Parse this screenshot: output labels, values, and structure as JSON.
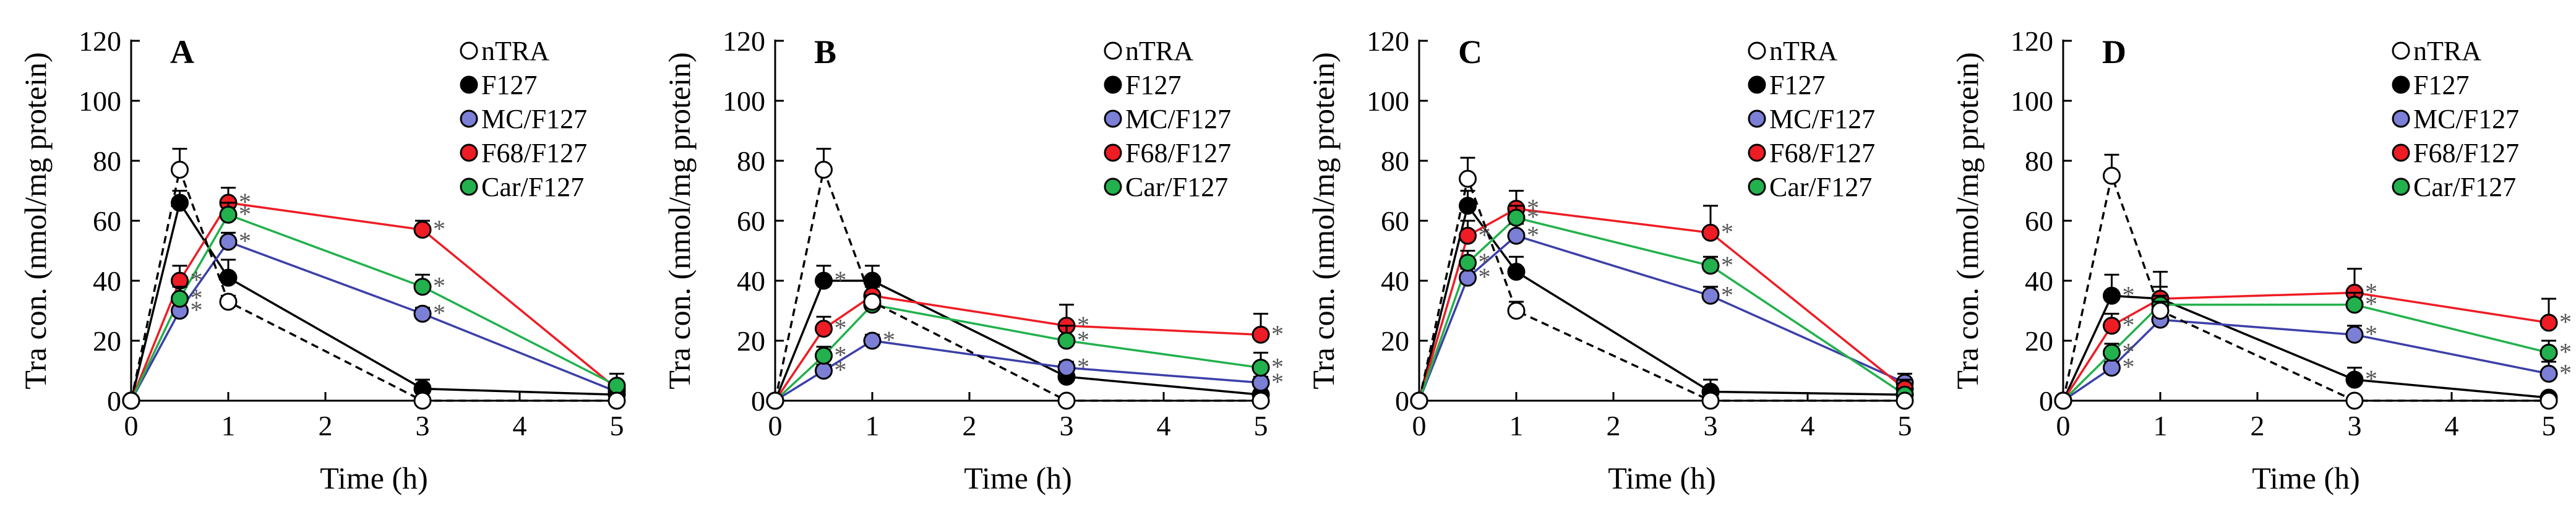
{
  "figure": {
    "time_points": [
      0,
      0.5,
      1,
      3,
      5
    ],
    "marker_colors": {
      "nTRA": "#ffffff",
      "F127": "#000000",
      "MC/F127": "#7b7fd6",
      "F68/F127": "#ee1c24",
      "Car/F127": "#22b14c"
    },
    "line_colors": {
      "nTRA": "#000000",
      "F127": "#000000",
      "MC/F127": "#3c3fa8",
      "F68/F127": "#ee1c24",
      "Car/F127": "#22b14c"
    },
    "significance_marker": "*"
  },
  "chart_data": [
    {
      "type": "line",
      "panel_label": "A",
      "xlabel": "Time (h)",
      "ylabel": "Tra con. (nmol/mg protein)",
      "xlim": [
        0,
        5
      ],
      "ylim": [
        0,
        120
      ],
      "x_ticks": [
        "0",
        "1",
        "2",
        "3",
        "4",
        "5"
      ],
      "y_ticks": [
        "0",
        "20",
        "40",
        "60",
        "80",
        "100",
        "120"
      ],
      "legend_position": "top-right",
      "series": [
        {
          "name": "nTRA",
          "x": [
            0,
            0.5,
            1,
            3,
            5
          ],
          "values": [
            0,
            77,
            33,
            0,
            0
          ],
          "errors": [
            0,
            7,
            2,
            1,
            1
          ],
          "sig": [
            false,
            false,
            false,
            false,
            false
          ]
        },
        {
          "name": "F127",
          "x": [
            0,
            0.5,
            1,
            3,
            5
          ],
          "values": [
            0,
            66,
            41,
            4,
            2
          ],
          "errors": [
            0,
            4,
            6,
            3,
            1
          ],
          "sig": [
            false,
            false,
            false,
            false,
            false
          ]
        },
        {
          "name": "MC/F127",
          "x": [
            0,
            0.5,
            1,
            3,
            5
          ],
          "values": [
            0,
            30,
            53,
            29,
            3
          ],
          "errors": [
            0,
            3,
            3,
            2,
            2
          ],
          "sig": [
            false,
            true,
            true,
            true,
            false
          ]
        },
        {
          "name": "F68/F127",
          "x": [
            0,
            0.5,
            1,
            3,
            5
          ],
          "values": [
            0,
            40,
            66,
            57,
            4
          ],
          "errors": [
            0,
            5,
            5,
            3,
            2
          ],
          "sig": [
            false,
            true,
            true,
            true,
            false
          ]
        },
        {
          "name": "Car/F127",
          "x": [
            0,
            0.5,
            1,
            3,
            5
          ],
          "values": [
            0,
            34,
            62,
            38,
            5
          ],
          "errors": [
            0,
            4,
            4,
            4,
            4
          ],
          "sig": [
            false,
            true,
            true,
            true,
            false
          ]
        }
      ]
    },
    {
      "type": "line",
      "panel_label": "B",
      "xlabel": "Time (h)",
      "ylabel": "Tra con. (nmol/mg protein)",
      "xlim": [
        0,
        5
      ],
      "ylim": [
        0,
        120
      ],
      "x_ticks": [
        "0",
        "1",
        "2",
        "3",
        "4",
        "5"
      ],
      "y_ticks": [
        "0",
        "20",
        "40",
        "60",
        "80",
        "100",
        "120"
      ],
      "legend_position": "top-right",
      "series": [
        {
          "name": "nTRA",
          "x": [
            0,
            0.5,
            1,
            3,
            5
          ],
          "values": [
            0,
            77,
            33,
            0,
            0
          ],
          "errors": [
            0,
            7,
            2,
            1,
            1
          ],
          "sig": [
            false,
            false,
            false,
            false,
            false
          ]
        },
        {
          "name": "F127",
          "x": [
            0,
            0.5,
            1,
            3,
            5
          ],
          "values": [
            0,
            40,
            40,
            8,
            2
          ],
          "errors": [
            0,
            5,
            5,
            3,
            1
          ],
          "sig": [
            false,
            true,
            false,
            false,
            false
          ]
        },
        {
          "name": "MC/F127",
          "x": [
            0,
            0.5,
            1,
            3,
            5
          ],
          "values": [
            0,
            10,
            20,
            11,
            6
          ],
          "errors": [
            0,
            2,
            2,
            2,
            2
          ],
          "sig": [
            false,
            true,
            true,
            true,
            true
          ]
        },
        {
          "name": "F68/F127",
          "x": [
            0,
            0.5,
            1,
            3,
            5
          ],
          "values": [
            0,
            24,
            35,
            25,
            22
          ],
          "errors": [
            0,
            4,
            3,
            7,
            7
          ],
          "sig": [
            false,
            true,
            false,
            true,
            true
          ]
        },
        {
          "name": "Car/F127",
          "x": [
            0,
            0.5,
            1,
            3,
            5
          ],
          "values": [
            0,
            15,
            32,
            20,
            11
          ],
          "errors": [
            0,
            3,
            3,
            5,
            5
          ],
          "sig": [
            false,
            true,
            false,
            true,
            true
          ]
        }
      ]
    },
    {
      "type": "line",
      "panel_label": "C",
      "xlabel": "Time (h)",
      "ylabel": "Tra con. (nmol/mg protein)",
      "xlim": [
        0,
        5
      ],
      "ylim": [
        0,
        120
      ],
      "x_ticks": [
        "0",
        "1",
        "2",
        "3",
        "4",
        "5"
      ],
      "y_ticks": [
        "0",
        "20",
        "40",
        "60",
        "80",
        "100",
        "120"
      ],
      "legend_position": "top-right",
      "series": [
        {
          "name": "nTRA",
          "x": [
            0,
            0.5,
            1,
            3,
            5
          ],
          "values": [
            0,
            74,
            30,
            0,
            0
          ],
          "errors": [
            0,
            7,
            3,
            1,
            1
          ],
          "sig": [
            false,
            false,
            false,
            false,
            false
          ]
        },
        {
          "name": "F127",
          "x": [
            0,
            0.5,
            1,
            3,
            5
          ],
          "values": [
            0,
            65,
            43,
            3,
            2
          ],
          "errors": [
            0,
            5,
            5,
            4,
            1
          ],
          "sig": [
            false,
            false,
            false,
            false,
            false
          ]
        },
        {
          "name": "MC/F127",
          "x": [
            0,
            0.5,
            1,
            3,
            5
          ],
          "values": [
            0,
            41,
            55,
            35,
            6
          ],
          "errors": [
            0,
            3,
            4,
            3,
            3
          ],
          "sig": [
            false,
            true,
            true,
            true,
            false
          ]
        },
        {
          "name": "F68/F127",
          "x": [
            0,
            0.5,
            1,
            3,
            5
          ],
          "values": [
            0,
            55,
            64,
            56,
            4
          ],
          "errors": [
            0,
            5,
            6,
            9,
            3
          ],
          "sig": [
            false,
            true,
            true,
            true,
            false
          ]
        },
        {
          "name": "Car/F127",
          "x": [
            0,
            0.5,
            1,
            3,
            5
          ],
          "values": [
            0,
            46,
            61,
            45,
            2
          ],
          "errors": [
            0,
            4,
            4,
            3,
            2
          ],
          "sig": [
            false,
            true,
            true,
            true,
            false
          ]
        }
      ]
    },
    {
      "type": "line",
      "panel_label": "D",
      "xlabel": "Time (h)",
      "ylabel": "Tra con. (nmol/mg protein)",
      "xlim": [
        0,
        5
      ],
      "ylim": [
        0,
        120
      ],
      "x_ticks": [
        "0",
        "1",
        "2",
        "3",
        "4",
        "5"
      ],
      "y_ticks": [
        "0",
        "20",
        "40",
        "60",
        "80",
        "100",
        "120"
      ],
      "legend_position": "top-right",
      "series": [
        {
          "name": "nTRA",
          "x": [
            0,
            0.5,
            1,
            3,
            5
          ],
          "values": [
            0,
            75,
            30,
            0,
            0
          ],
          "errors": [
            0,
            7,
            3,
            1,
            1
          ],
          "sig": [
            false,
            false,
            false,
            false,
            false
          ]
        },
        {
          "name": "F127",
          "x": [
            0,
            0.5,
            1,
            3,
            5
          ],
          "values": [
            0,
            35,
            34,
            7,
            1
          ],
          "errors": [
            0,
            7,
            9,
            4,
            1
          ],
          "sig": [
            false,
            true,
            false,
            true,
            false
          ]
        },
        {
          "name": "MC/F127",
          "x": [
            0,
            0.5,
            1,
            3,
            5
          ],
          "values": [
            0,
            11,
            27,
            22,
            9
          ],
          "errors": [
            0,
            2,
            2,
            3,
            4
          ],
          "sig": [
            false,
            true,
            false,
            true,
            true
          ]
        },
        {
          "name": "F68/F127",
          "x": [
            0,
            0.5,
            1,
            3,
            5
          ],
          "values": [
            0,
            25,
            34,
            36,
            26
          ],
          "errors": [
            0,
            4,
            4,
            8,
            8
          ],
          "sig": [
            false,
            true,
            false,
            true,
            true
          ]
        },
        {
          "name": "Car/F127",
          "x": [
            0,
            0.5,
            1,
            3,
            5
          ],
          "values": [
            0,
            16,
            32,
            32,
            16
          ],
          "errors": [
            0,
            3,
            3,
            4,
            4
          ],
          "sig": [
            false,
            true,
            false,
            true,
            true
          ]
        }
      ]
    }
  ]
}
